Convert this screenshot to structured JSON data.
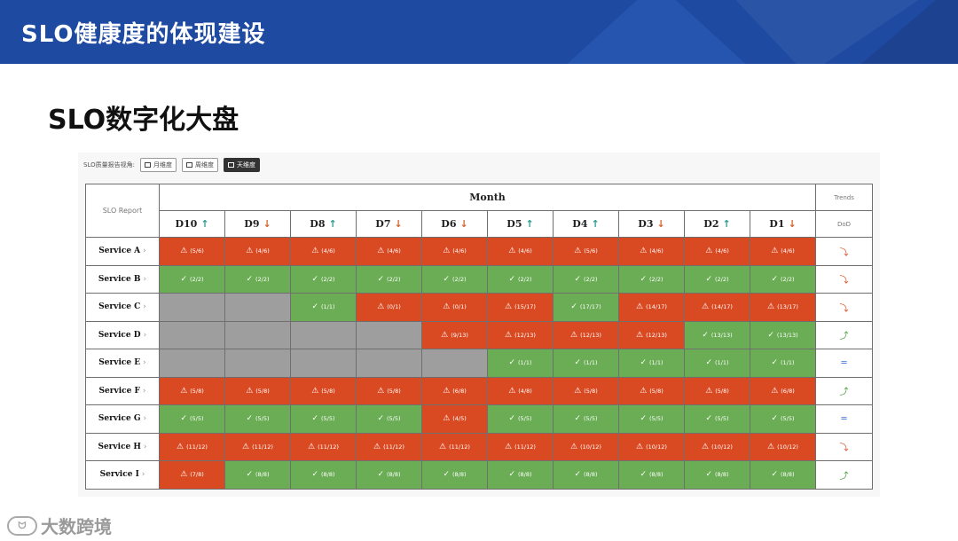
{
  "slide": {
    "title": "SLO健康度的体现建设",
    "subtitle": "SLO数字化大盘"
  },
  "toolbar": {
    "label": "SLO质量报告视角:",
    "buttons": [
      {
        "label": "月维度",
        "active": false
      },
      {
        "label": "周维度",
        "active": false
      },
      {
        "label": "天维度",
        "active": true
      }
    ]
  },
  "table": {
    "corner_label": "SLO Report",
    "group_header": "Month",
    "trends_header": "Trends",
    "trends_sub": "DoD",
    "days": [
      {
        "label": "D10",
        "dir": "up"
      },
      {
        "label": "D9",
        "dir": "down"
      },
      {
        "label": "D8",
        "dir": "up"
      },
      {
        "label": "D7",
        "dir": "down"
      },
      {
        "label": "D6",
        "dir": "down"
      },
      {
        "label": "D5",
        "dir": "up"
      },
      {
        "label": "D4",
        "dir": "up"
      },
      {
        "label": "D3",
        "dir": "down"
      },
      {
        "label": "D2",
        "dir": "up"
      },
      {
        "label": "D1",
        "dir": "down"
      }
    ],
    "rows": [
      {
        "service": "Service A",
        "trend": "down",
        "cells": [
          {
            "s": "red",
            "v": "(5/6)"
          },
          {
            "s": "red",
            "v": "(4/6)"
          },
          {
            "s": "red",
            "v": "(4/6)"
          },
          {
            "s": "red",
            "v": "(4/6)"
          },
          {
            "s": "red",
            "v": "(4/6)"
          },
          {
            "s": "red",
            "v": "(4/6)"
          },
          {
            "s": "red",
            "v": "(5/6)"
          },
          {
            "s": "red",
            "v": "(4/6)"
          },
          {
            "s": "red",
            "v": "(4/6)"
          },
          {
            "s": "red",
            "v": "(4/6)"
          }
        ]
      },
      {
        "service": "Service B",
        "trend": "down",
        "cells": [
          {
            "s": "green",
            "v": "(2/2)"
          },
          {
            "s": "green",
            "v": "(2/2)"
          },
          {
            "s": "green",
            "v": "(2/2)"
          },
          {
            "s": "green",
            "v": "(2/2)"
          },
          {
            "s": "green",
            "v": "(2/2)"
          },
          {
            "s": "green",
            "v": "(2/2)"
          },
          {
            "s": "green",
            "v": "(2/2)"
          },
          {
            "s": "green",
            "v": "(2/2)"
          },
          {
            "s": "green",
            "v": "(2/2)"
          },
          {
            "s": "green",
            "v": "(2/2)"
          }
        ]
      },
      {
        "service": "Service C",
        "trend": "down",
        "cells": [
          {
            "s": "grey",
            "v": ""
          },
          {
            "s": "grey",
            "v": ""
          },
          {
            "s": "green",
            "v": "(1/1)"
          },
          {
            "s": "red",
            "v": "(0/1)"
          },
          {
            "s": "red",
            "v": "(0/1)"
          },
          {
            "s": "red",
            "v": "(15/17)"
          },
          {
            "s": "green",
            "v": "(17/17)"
          },
          {
            "s": "red",
            "v": "(14/17)"
          },
          {
            "s": "red",
            "v": "(14/17)"
          },
          {
            "s": "red",
            "v": "(13/17)"
          }
        ]
      },
      {
        "service": "Service D",
        "trend": "up",
        "cells": [
          {
            "s": "grey",
            "v": ""
          },
          {
            "s": "grey",
            "v": ""
          },
          {
            "s": "grey",
            "v": ""
          },
          {
            "s": "grey",
            "v": ""
          },
          {
            "s": "red",
            "v": "(9/13)"
          },
          {
            "s": "red",
            "v": "(12/13)"
          },
          {
            "s": "red",
            "v": "(12/13)"
          },
          {
            "s": "red",
            "v": "(12/13)"
          },
          {
            "s": "green",
            "v": "(13/13)"
          },
          {
            "s": "green",
            "v": "(13/13)"
          }
        ]
      },
      {
        "service": "Service E",
        "trend": "flat",
        "cells": [
          {
            "s": "grey",
            "v": ""
          },
          {
            "s": "grey",
            "v": ""
          },
          {
            "s": "grey",
            "v": ""
          },
          {
            "s": "grey",
            "v": ""
          },
          {
            "s": "grey",
            "v": ""
          },
          {
            "s": "green",
            "v": "(1/1)"
          },
          {
            "s": "green",
            "v": "(1/1)"
          },
          {
            "s": "green",
            "v": "(1/1)"
          },
          {
            "s": "green",
            "v": "(1/1)"
          },
          {
            "s": "green",
            "v": "(1/1)"
          }
        ]
      },
      {
        "service": "Service F",
        "trend": "up",
        "cells": [
          {
            "s": "red",
            "v": "(5/8)"
          },
          {
            "s": "red",
            "v": "(5/8)"
          },
          {
            "s": "red",
            "v": "(5/8)"
          },
          {
            "s": "red",
            "v": "(5/8)"
          },
          {
            "s": "red",
            "v": "(6/8)"
          },
          {
            "s": "red",
            "v": "(4/8)"
          },
          {
            "s": "red",
            "v": "(5/8)"
          },
          {
            "s": "red",
            "v": "(5/8)"
          },
          {
            "s": "red",
            "v": "(5/8)"
          },
          {
            "s": "red",
            "v": "(6/8)"
          }
        ]
      },
      {
        "service": "Service G",
        "trend": "flat",
        "cells": [
          {
            "s": "green",
            "v": "(5/5)"
          },
          {
            "s": "green",
            "v": "(5/5)"
          },
          {
            "s": "green",
            "v": "(5/5)"
          },
          {
            "s": "green",
            "v": "(5/5)"
          },
          {
            "s": "red",
            "v": "(4/5)"
          },
          {
            "s": "green",
            "v": "(5/5)"
          },
          {
            "s": "green",
            "v": "(5/5)"
          },
          {
            "s": "green",
            "v": "(5/5)"
          },
          {
            "s": "green",
            "v": "(5/5)"
          },
          {
            "s": "green",
            "v": "(5/5)"
          }
        ]
      },
      {
        "service": "Service H",
        "trend": "down",
        "cells": [
          {
            "s": "red",
            "v": "(11/12)"
          },
          {
            "s": "red",
            "v": "(11/12)"
          },
          {
            "s": "red",
            "v": "(11/12)"
          },
          {
            "s": "red",
            "v": "(11/12)"
          },
          {
            "s": "red",
            "v": "(11/12)"
          },
          {
            "s": "red",
            "v": "(11/12)"
          },
          {
            "s": "red",
            "v": "(10/12)"
          },
          {
            "s": "red",
            "v": "(10/12)"
          },
          {
            "s": "red",
            "v": "(10/12)"
          },
          {
            "s": "red",
            "v": "(10/12)"
          }
        ]
      },
      {
        "service": "Service I",
        "trend": "up",
        "cells": [
          {
            "s": "red",
            "v": "(7/8)"
          },
          {
            "s": "green",
            "v": "(8/8)"
          },
          {
            "s": "green",
            "v": "(8/8)"
          },
          {
            "s": "green",
            "v": "(8/8)"
          },
          {
            "s": "green",
            "v": "(8/8)"
          },
          {
            "s": "green",
            "v": "(8/8)"
          },
          {
            "s": "green",
            "v": "(8/8)"
          },
          {
            "s": "green",
            "v": "(8/8)"
          },
          {
            "s": "green",
            "v": "(8/8)"
          },
          {
            "s": "green",
            "v": "(8/8)"
          }
        ]
      }
    ]
  },
  "watermark": {
    "glyph": "ᗢ",
    "text": "大数跨境"
  },
  "colors": {
    "header_band": "#1f4aa1",
    "fail": "#d94a22",
    "pass": "#6aad55",
    "no_data": "#9e9e9e",
    "trend_flat": "#3a6fd0"
  }
}
